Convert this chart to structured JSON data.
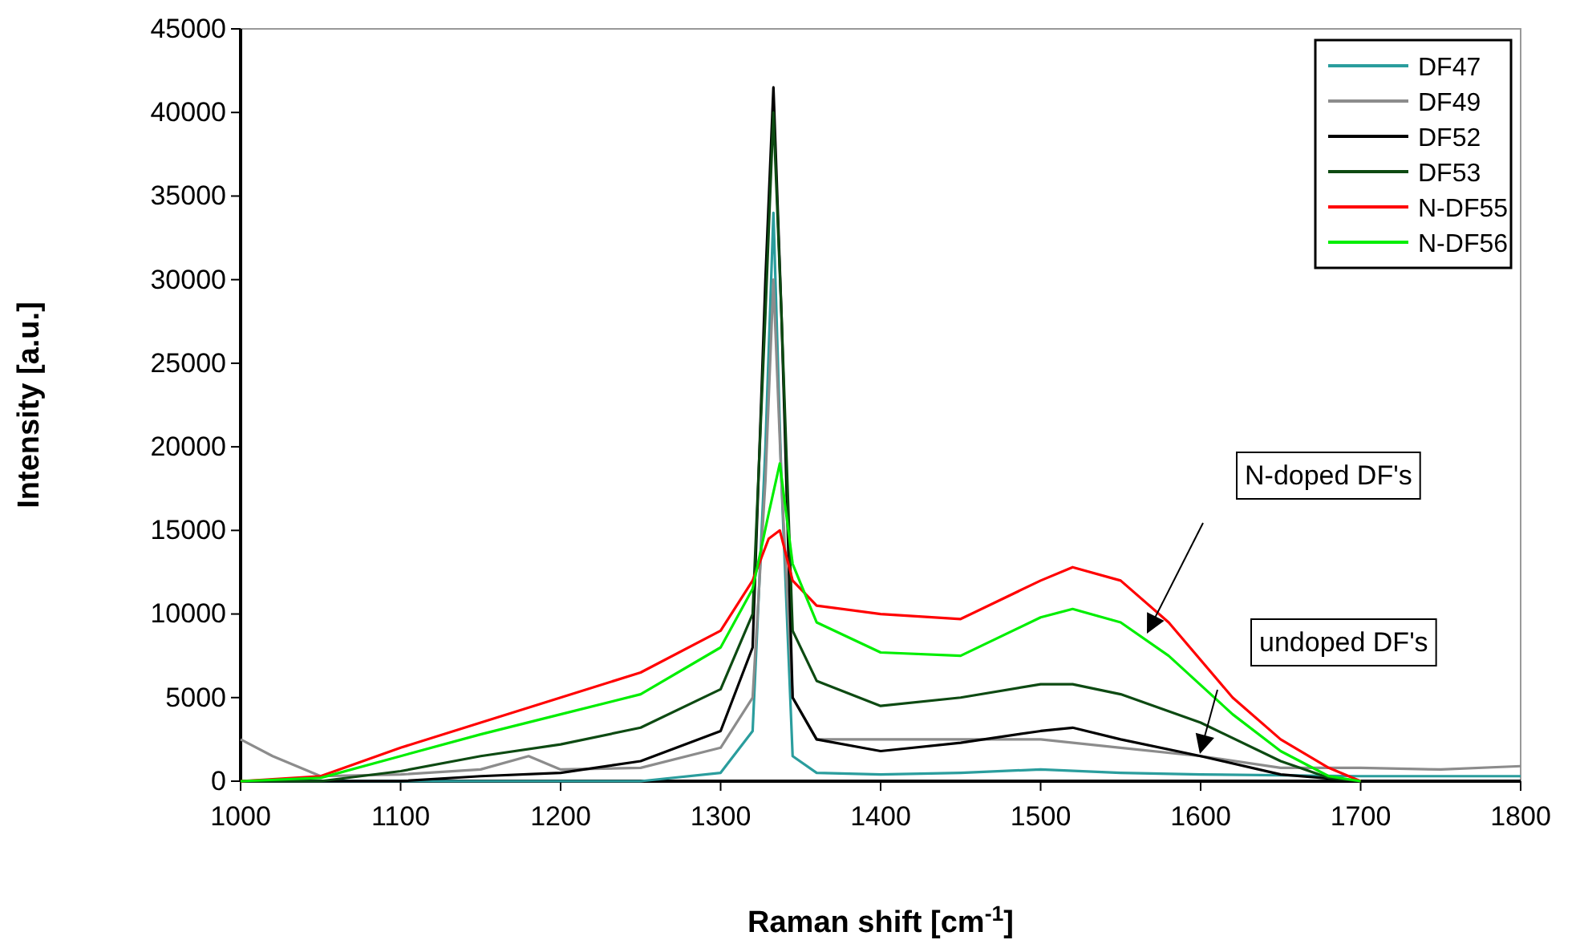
{
  "chart_data": {
    "type": "line",
    "xlabel": "Raman shift [cm$^{-1}$]",
    "ylabel": "Intensity [a.u.]",
    "xlim": [
      1000,
      1800
    ],
    "xticks": [
      1000,
      1100,
      1200,
      1300,
      1400,
      1500,
      1600,
      1700,
      1800
    ],
    "ylim": [
      0,
      45000
    ],
    "yticks": [
      0,
      5000,
      10000,
      15000,
      20000,
      25000,
      30000,
      35000,
      40000,
      45000
    ],
    "grid": false,
    "legend": "top right",
    "marker": "none",
    "line_style": "solid",
    "annotations": [
      "N-doped DF's",
      "undoped DF's"
    ],
    "series": [
      {
        "name": "DF47",
        "color": "#2a9d9d",
        "x": [
          1000,
          1100,
          1250,
          1300,
          1320,
          1328,
          1333,
          1338,
          1345,
          1360,
          1400,
          1450,
          1500,
          1550,
          1600,
          1700,
          1800
        ],
        "values": [
          0,
          0,
          0,
          500,
          3000,
          20000,
          34000,
          18000,
          1500,
          500,
          400,
          500,
          700,
          500,
          400,
          300,
          300
        ]
      },
      {
        "name": "DF49",
        "color": "#8c8c8c",
        "x": [
          1000,
          1020,
          1050,
          1100,
          1150,
          1180,
          1200,
          1250,
          1300,
          1320,
          1328,
          1333,
          1338,
          1345,
          1360,
          1400,
          1450,
          1500,
          1550,
          1600,
          1650,
          1700,
          1750,
          1800
        ],
        "values": [
          2500,
          1500,
          300,
          400,
          700,
          1500,
          700,
          800,
          2000,
          5000,
          18000,
          30000,
          18000,
          5000,
          2500,
          2500,
          2500,
          2500,
          2000,
          1500,
          800,
          800,
          700,
          900
        ]
      },
      {
        "name": "DF52",
        "color": "#000000",
        "x": [
          1000,
          1100,
          1150,
          1200,
          1250,
          1300,
          1320,
          1328,
          1333,
          1338,
          1345,
          1360,
          1400,
          1450,
          1500,
          1520,
          1550,
          1600,
          1650,
          1700
        ],
        "values": [
          0,
          0,
          300,
          500,
          1200,
          3000,
          8000,
          30000,
          41500,
          28000,
          5000,
          2500,
          1800,
          2300,
          3000,
          3200,
          2500,
          1500,
          400,
          0
        ]
      },
      {
        "name": "DF53",
        "color": "#0d4a12",
        "x": [
          1000,
          1050,
          1100,
          1150,
          1200,
          1250,
          1300,
          1320,
          1328,
          1333,
          1338,
          1345,
          1360,
          1400,
          1450,
          1500,
          1520,
          1550,
          1600,
          1650,
          1680,
          1700
        ],
        "values": [
          0,
          0,
          600,
          1500,
          2200,
          3200,
          5500,
          10000,
          28000,
          40000,
          28000,
          9000,
          6000,
          4500,
          5000,
          5800,
          5800,
          5200,
          3500,
          1200,
          200,
          0
        ]
      },
      {
        "name": "N-DF55",
        "color": "#ff0000",
        "x": [
          1000,
          1050,
          1100,
          1150,
          1200,
          1250,
          1300,
          1320,
          1330,
          1337,
          1345,
          1360,
          1400,
          1450,
          1500,
          1520,
          1550,
          1580,
          1620,
          1650,
          1680,
          1700
        ],
        "values": [
          0,
          300,
          2000,
          3500,
          5000,
          6500,
          9000,
          12000,
          14500,
          15000,
          12000,
          10500,
          10000,
          9700,
          12000,
          12800,
          12000,
          9500,
          5000,
          2500,
          800,
          0
        ]
      },
      {
        "name": "N-DF56",
        "color": "#00ee00",
        "x": [
          1000,
          1050,
          1100,
          1150,
          1200,
          1250,
          1300,
          1320,
          1330,
          1337,
          1345,
          1360,
          1400,
          1450,
          1500,
          1520,
          1550,
          1580,
          1620,
          1650,
          1680,
          1700
        ],
        "values": [
          0,
          200,
          1500,
          2800,
          4000,
          5200,
          8000,
          11500,
          16000,
          19000,
          13000,
          9500,
          7700,
          7500,
          9800,
          10300,
          9500,
          7500,
          4000,
          1800,
          300,
          0
        ]
      }
    ]
  }
}
